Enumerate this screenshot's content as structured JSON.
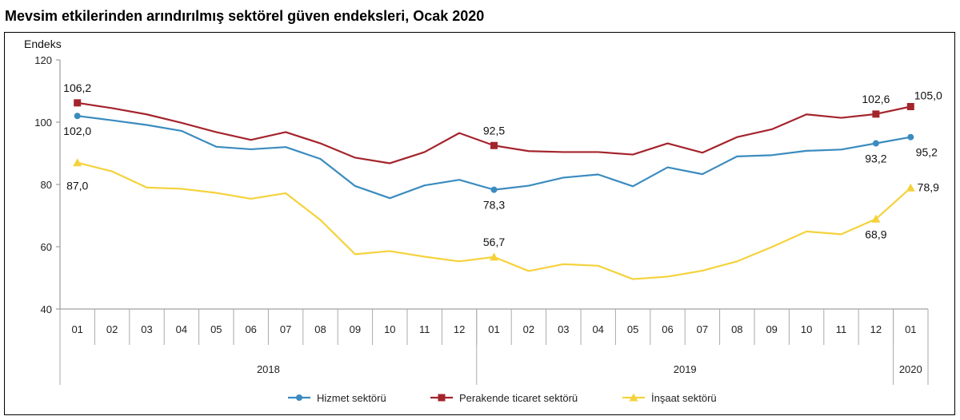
{
  "chart_data": {
    "type": "line",
    "title": "Mevsim etkilerinden arındırılmış sektörel güven endeksleri, Ocak 2020",
    "ylabel": "Endeks",
    "ylim": [
      40,
      120
    ],
    "yticks": [
      40,
      60,
      80,
      100,
      120
    ],
    "categories": [
      "01",
      "02",
      "03",
      "04",
      "05",
      "06",
      "07",
      "08",
      "09",
      "10",
      "11",
      "12",
      "01",
      "02",
      "03",
      "04",
      "05",
      "06",
      "07",
      "08",
      "09",
      "10",
      "11",
      "12",
      "01"
    ],
    "year_groups": [
      {
        "label": "2018",
        "count": 12
      },
      {
        "label": "2019",
        "count": 12
      },
      {
        "label": "2020",
        "count": 1
      }
    ],
    "legend_position": "bottom",
    "grid": false,
    "series": [
      {
        "name": "Hizmet sektörü",
        "color": "#3b8bbf",
        "marker": "circle",
        "values": [
          102.0,
          100.6,
          99.1,
          97.2,
          92.1,
          91.3,
          92.0,
          88.2,
          79.5,
          75.6,
          79.7,
          81.5,
          78.3,
          79.6,
          82.2,
          83.2,
          79.4,
          85.5,
          83.3,
          89.0,
          89.4,
          90.8,
          91.2,
          93.2,
          95.2
        ],
        "labels": [
          {
            "index": 0,
            "text": "102,0"
          },
          {
            "index": 12,
            "text": "78,3"
          },
          {
            "index": 23,
            "text": "93,2"
          },
          {
            "index": 24,
            "text": "95,2"
          }
        ]
      },
      {
        "name": "Perakende ticaret sektörü",
        "color": "#a4242c",
        "marker": "square",
        "values": [
          106.2,
          104.5,
          102.5,
          99.8,
          96.8,
          94.3,
          96.8,
          93.2,
          88.6,
          86.8,
          90.4,
          96.5,
          92.5,
          90.7,
          90.4,
          90.4,
          89.6,
          93.2,
          90.2,
          95.2,
          97.7,
          102.5,
          101.4,
          102.6,
          105.0
        ],
        "labels": [
          {
            "index": 0,
            "text": "106,2"
          },
          {
            "index": 12,
            "text": "92,5"
          },
          {
            "index": 23,
            "text": "102,6"
          },
          {
            "index": 24,
            "text": "105,0"
          }
        ]
      },
      {
        "name": "İnşaat sektörü",
        "color": "#f5d23c",
        "marker": "triangle",
        "values": [
          87.0,
          84.2,
          79.0,
          78.6,
          77.3,
          75.4,
          77.2,
          68.6,
          57.6,
          58.6,
          56.8,
          55.3,
          56.7,
          52.2,
          54.4,
          53.9,
          49.6,
          50.4,
          52.3,
          55.3,
          59.9,
          64.9,
          64.0,
          68.9,
          78.9
        ],
        "labels": [
          {
            "index": 0,
            "text": "87,0"
          },
          {
            "index": 12,
            "text": "56,7"
          },
          {
            "index": 23,
            "text": "68,9"
          },
          {
            "index": 24,
            "text": "78,9"
          }
        ]
      }
    ]
  }
}
